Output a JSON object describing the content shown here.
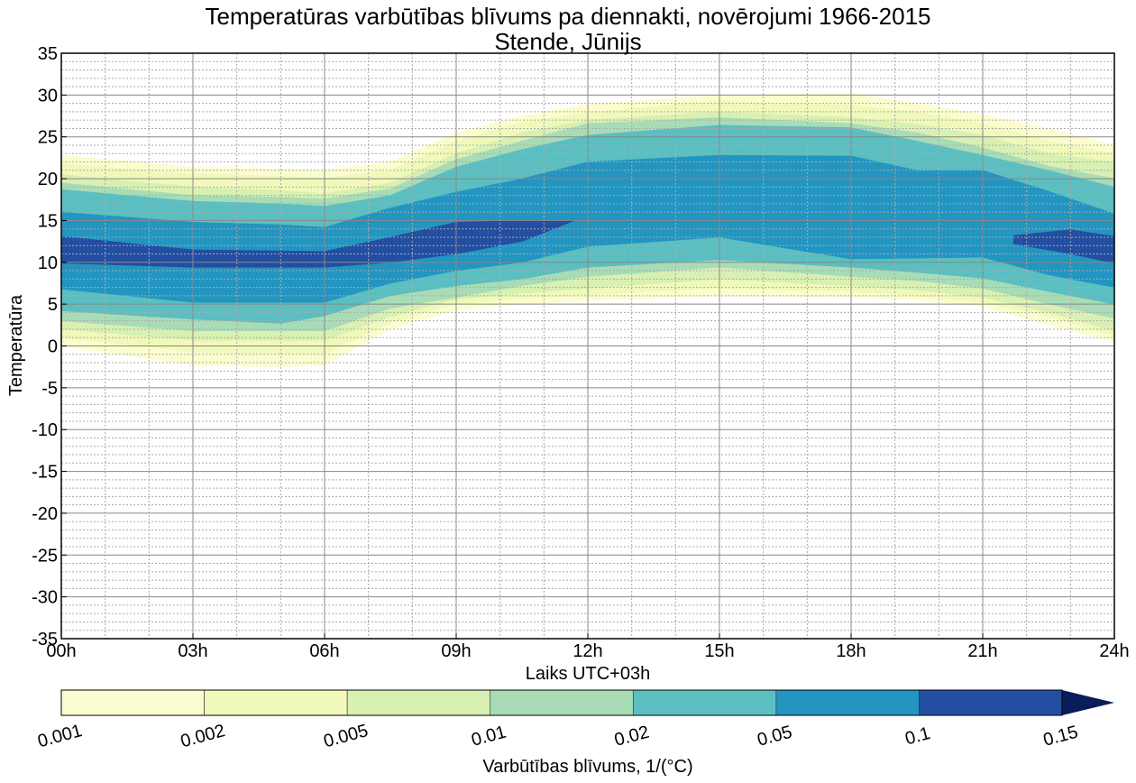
{
  "chart_data": {
    "type": "contourf",
    "title": "Temperatūras varbūtības blīvums pa diennakti, novērojumi 1966-2015",
    "subtitle": "Stende, Jūnijs",
    "xlabel": "Laiks UTC+03h",
    "ylabel": "Temperatūra",
    "xlim": [
      0,
      24
    ],
    "ylim": [
      -35,
      35
    ],
    "grid": true,
    "xticks": [
      {
        "value": 0,
        "label": "00h"
      },
      {
        "value": 3,
        "label": "03h"
      },
      {
        "value": 6,
        "label": "06h"
      },
      {
        "value": 9,
        "label": "09h"
      },
      {
        "value": 12,
        "label": "12h"
      },
      {
        "value": 15,
        "label": "15h"
      },
      {
        "value": 18,
        "label": "18h"
      },
      {
        "value": 21,
        "label": "21h"
      },
      {
        "value": 24,
        "label": "24h"
      }
    ],
    "yticks": [
      {
        "value": 35,
        "label": "35"
      },
      {
        "value": 30,
        "label": "30"
      },
      {
        "value": 25,
        "label": "25"
      },
      {
        "value": 20,
        "label": "20"
      },
      {
        "value": 15,
        "label": "15"
      },
      {
        "value": 10,
        "label": "10"
      },
      {
        "value": 5,
        "label": "5"
      },
      {
        "value": 0,
        "label": "0"
      },
      {
        "value": -5,
        "label": "-5"
      },
      {
        "value": -10,
        "label": "-10"
      },
      {
        "value": -15,
        "label": "-15"
      },
      {
        "value": -20,
        "label": "-20"
      },
      {
        "value": -25,
        "label": "-25"
      },
      {
        "value": -30,
        "label": "-30"
      },
      {
        "value": -35,
        "label": "-35"
      }
    ],
    "colorbar": {
      "label": "Varbūtības blīvums, 1/($^\\circ$C)",
      "label_display": "Varbūtības blīvums, 1/(°C)",
      "levels": [
        "0.001",
        "0.002",
        "0.005",
        "0.01",
        "0.02",
        "0.05",
        "0.1",
        "0.15"
      ],
      "colors": [
        "#fbfdcf",
        "#f0f9b9",
        "#d8f0b2",
        "#a8dcb7",
        "#5bbfc1",
        "#2395c1",
        "#234ea2"
      ],
      "extend_color": "#0a1d5a",
      "extend": "max"
    },
    "contours": [
      {
        "level": 0.001,
        "color": "#fbfdcf",
        "regions": [
          {
            "hours": [
              0,
              3,
              5,
              6,
              7.5,
              9,
              10.5,
              12,
              15,
              18,
              19.5,
              21,
              22.5,
              24
            ],
            "upper": [
              22.8,
              21.4,
              21.2,
              21,
              22,
              25.5,
              27.5,
              28.9,
              30,
              30.2,
              29,
              27.7,
              26,
              24
            ],
            "lower": [
              0,
              -2.3,
              -2.5,
              -2.3,
              2,
              4.3,
              5,
              5.4,
              6,
              5.8,
              5.5,
              4.7,
              2.5,
              0.5
            ]
          }
        ]
      },
      {
        "level": 0.002,
        "color": "#f0f9b9",
        "regions": [
          {
            "hours": [
              0,
              3,
              5,
              6,
              7.5,
              9,
              10.5,
              12,
              15,
              18,
              19.5,
              21,
              22.5,
              24
            ],
            "upper": [
              21.8,
              20.6,
              20.3,
              20.1,
              21,
              24.5,
              26.8,
              27.9,
              29.3,
              28.8,
              28,
              26.6,
              24.5,
              23
            ],
            "lower": [
              1,
              -0.7,
              -1,
              -1,
              2.8,
              5,
              5.7,
              6.1,
              6.9,
              6.5,
              6,
              5.2,
              3.5,
              1.2
            ]
          }
        ]
      },
      {
        "level": 0.005,
        "color": "#d8f0b2",
        "regions": [
          {
            "hours": [
              0,
              3,
              5,
              6,
              7.5,
              9,
              10.5,
              12,
              15,
              18,
              19.5,
              21,
              22.5,
              24
            ],
            "upper": [
              20.5,
              19,
              18.6,
              18.2,
              19.5,
              23,
              25.5,
              27,
              28,
              27.3,
              26.5,
              25.2,
              23,
              22
            ],
            "lower": [
              2,
              0.7,
              0.7,
              0.7,
              3.5,
              5.6,
              6.3,
              6.9,
              8,
              7.2,
              6.7,
              5.8,
              4,
              1.8
            ]
          }
        ]
      },
      {
        "level": 0.01,
        "color": "#a8dcb7",
        "regions": [
          {
            "hours": [
              0,
              3,
              5,
              6,
              7.5,
              9,
              10.5,
              12,
              15,
              18,
              19.5,
              21,
              22.5,
              24
            ],
            "upper": [
              19.5,
              18,
              17.8,
              17.6,
              18.8,
              22.3,
              24.5,
              26.6,
              27.3,
              26.6,
              25.5,
              23.7,
              21.5,
              20
            ],
            "lower": [
              3,
              1.8,
              1.8,
              1.8,
              4.5,
              5.8,
              7.2,
              8.3,
              9.4,
              8.3,
              7.8,
              6.9,
              5,
              3.3
            ]
          }
        ]
      },
      {
        "level": 0.02,
        "color": "#5bbfc1",
        "regions": [
          {
            "hours": [
              0,
              3,
              5,
              6,
              7.5,
              9,
              10.5,
              12,
              15,
              18,
              19.5,
              21,
              22.5,
              24
            ],
            "upper": [
              18.7,
              17.3,
              17,
              16.7,
              18,
              21.4,
              23.5,
              25.2,
              26.4,
              26.1,
              24.5,
              22.8,
              21,
              19
            ],
            "lower": [
              4.2,
              3.2,
              2.7,
              3.6,
              6,
              7.2,
              8,
              9.4,
              10.3,
              9.4,
              8.8,
              8.1,
              6.5,
              5
            ]
          }
        ]
      },
      {
        "level": 0.05,
        "color": "#2395c1",
        "regions": [
          {
            "hours": [
              0,
              3,
              5,
              6,
              7.5,
              9,
              10.5,
              12,
              15,
              18,
              19.5,
              21,
              22.5,
              24
            ],
            "upper": [
              16,
              14.8,
              14.5,
              14.2,
              16.5,
              18.4,
              20,
              22,
              22.8,
              22.7,
              21,
              21,
              18.5,
              15.8
            ],
            "lower": [
              6.8,
              5.2,
              5.2,
              5.2,
              7.5,
              9,
              10,
              11.9,
              13,
              10.4,
              10.5,
              10.6,
              8.5,
              7
            ]
          }
        ]
      },
      {
        "level": 0.1,
        "color": "#234ea2",
        "regions": [
          {
            "hours": [
              0,
              3,
              6,
              7.5,
              9,
              10.5,
              11.7
            ],
            "upper": [
              13.1,
              11.5,
              11.3,
              13,
              14.8,
              15,
              15
            ],
            "lower": [
              9.9,
              9.4,
              9.4,
              10,
              11,
              12.5,
              15
            ]
          },
          {
            "hours": [
              21.7,
              23,
              24
            ],
            "upper": [
              13.2,
              13.9,
              13.1
            ],
            "lower": [
              12.2,
              11,
              9.9
            ]
          }
        ]
      }
    ]
  }
}
